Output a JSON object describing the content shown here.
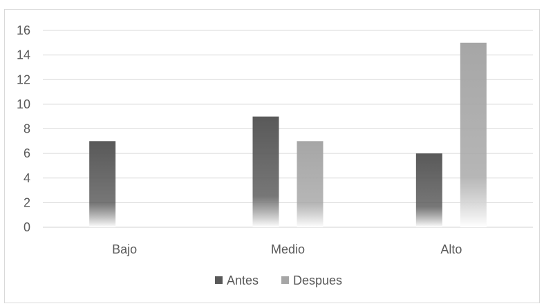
{
  "chart_data": {
    "type": "bar",
    "categories": [
      "Bajo",
      "Medio",
      "Alto"
    ],
    "series": [
      {
        "name": "Antes",
        "values": [
          7,
          9,
          6
        ],
        "color": "#595959"
      },
      {
        "name": "Despues",
        "values": [
          0,
          7,
          15
        ],
        "color": "#a6a6a6"
      }
    ],
    "title": "",
    "xlabel": "",
    "ylabel": "",
    "ylim": [
      0,
      16
    ],
    "yticks": [
      0,
      2,
      4,
      6,
      8,
      10,
      12,
      14,
      16
    ],
    "grid": true,
    "legend": "bottom",
    "bar_fill": "gradient-fade-to-white"
  }
}
